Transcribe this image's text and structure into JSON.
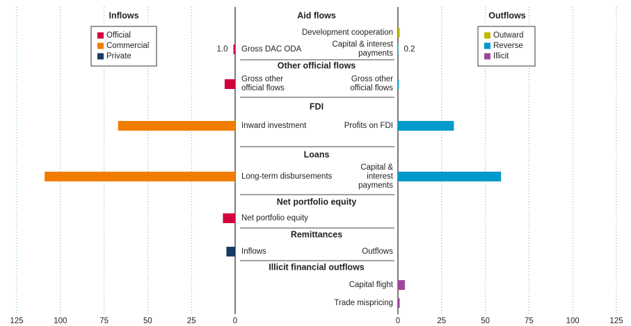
{
  "chart_data": {
    "type": "butterfly_bar",
    "inflow_title": "Inflows",
    "outflow_title": "Outflows",
    "sections": [
      "Aid flows",
      "Other official flows",
      "FDI",
      "Loans",
      "Net portfolio equity",
      "Remittances",
      "Illicit financial outflows"
    ],
    "left_labels": [
      null,
      "Gross DAC ODA",
      "Gross other official flows",
      "Inward investment",
      "Long-term disbursements",
      "Net portfolio equity",
      "Inflows",
      null,
      null
    ],
    "right_labels": [
      "Development cooperation",
      "Capital & interest payments",
      "Gross other official flows",
      "Profits on FDI",
      "Capital & interest payments",
      null,
      "Outflows",
      "Capital flight",
      "Trade mispricing"
    ],
    "inflow_series": [
      {
        "name": "Official",
        "color": "#d2003c",
        "values": [
          null,
          1,
          6,
          null,
          null,
          7,
          null,
          null,
          null
        ],
        "value_labels": [
          null,
          "1.0",
          null,
          null,
          null,
          null,
          null,
          null,
          null
        ]
      },
      {
        "name": "Commercial",
        "color": "#f07d00",
        "values": [
          null,
          null,
          null,
          67,
          109,
          null,
          null,
          null,
          null
        ]
      },
      {
        "name": "Private",
        "color": "#173b63",
        "values": [
          null,
          null,
          null,
          null,
          null,
          null,
          5,
          null,
          null
        ]
      }
    ],
    "outflow_series": [
      {
        "name": "Outward",
        "color": "#bdb800",
        "values": [
          1,
          null,
          null,
          null,
          null,
          null,
          null,
          null,
          null
        ]
      },
      {
        "name": "Reverse",
        "color": "#0099cc",
        "values": [
          null,
          0.2,
          0.5,
          32,
          59,
          null,
          null,
          null,
          null
        ],
        "value_labels": [
          null,
          "0.2",
          null,
          null,
          null,
          null,
          null,
          null,
          null
        ]
      },
      {
        "name": "Illicit",
        "color": "#a0479b",
        "values": [
          null,
          null,
          null,
          null,
          null,
          null,
          null,
          4,
          1
        ]
      }
    ],
    "xlim": [
      0,
      125
    ],
    "xticks": [
      0,
      25,
      50,
      75,
      100,
      125
    ],
    "grid": true
  }
}
